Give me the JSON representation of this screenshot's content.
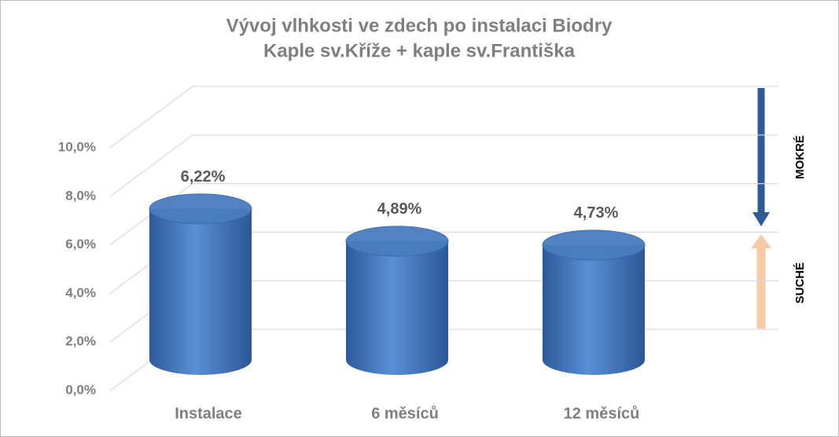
{
  "chart_data": {
    "type": "bar",
    "title": "Vývoj vlhkosti ve zdech po instalaci Biodry",
    "subtitle": "Kaple sv.Kříže + kaple sv.Františka",
    "categories": [
      "Instalace",
      "6 měsíců",
      "12 měsíců"
    ],
    "values": [
      6.22,
      4.89,
      4.73
    ],
    "value_labels": [
      "6,22%",
      "4,89%",
      "4,73%"
    ],
    "color": "#4a7cc0",
    "ylim": [
      0,
      10
    ],
    "yticks": [
      {
        "value": 0,
        "label": "0,0%"
      },
      {
        "value": 2,
        "label": "2,0%"
      },
      {
        "value": 4,
        "label": "4,0%"
      },
      {
        "value": 6,
        "label": "6,0%"
      },
      {
        "value": 8,
        "label": "8,0%"
      },
      {
        "value": 10,
        "label": "10,0%"
      }
    ],
    "grid": true,
    "annotations": [
      "MOKRÉ",
      "SUCHÉ"
    ]
  }
}
